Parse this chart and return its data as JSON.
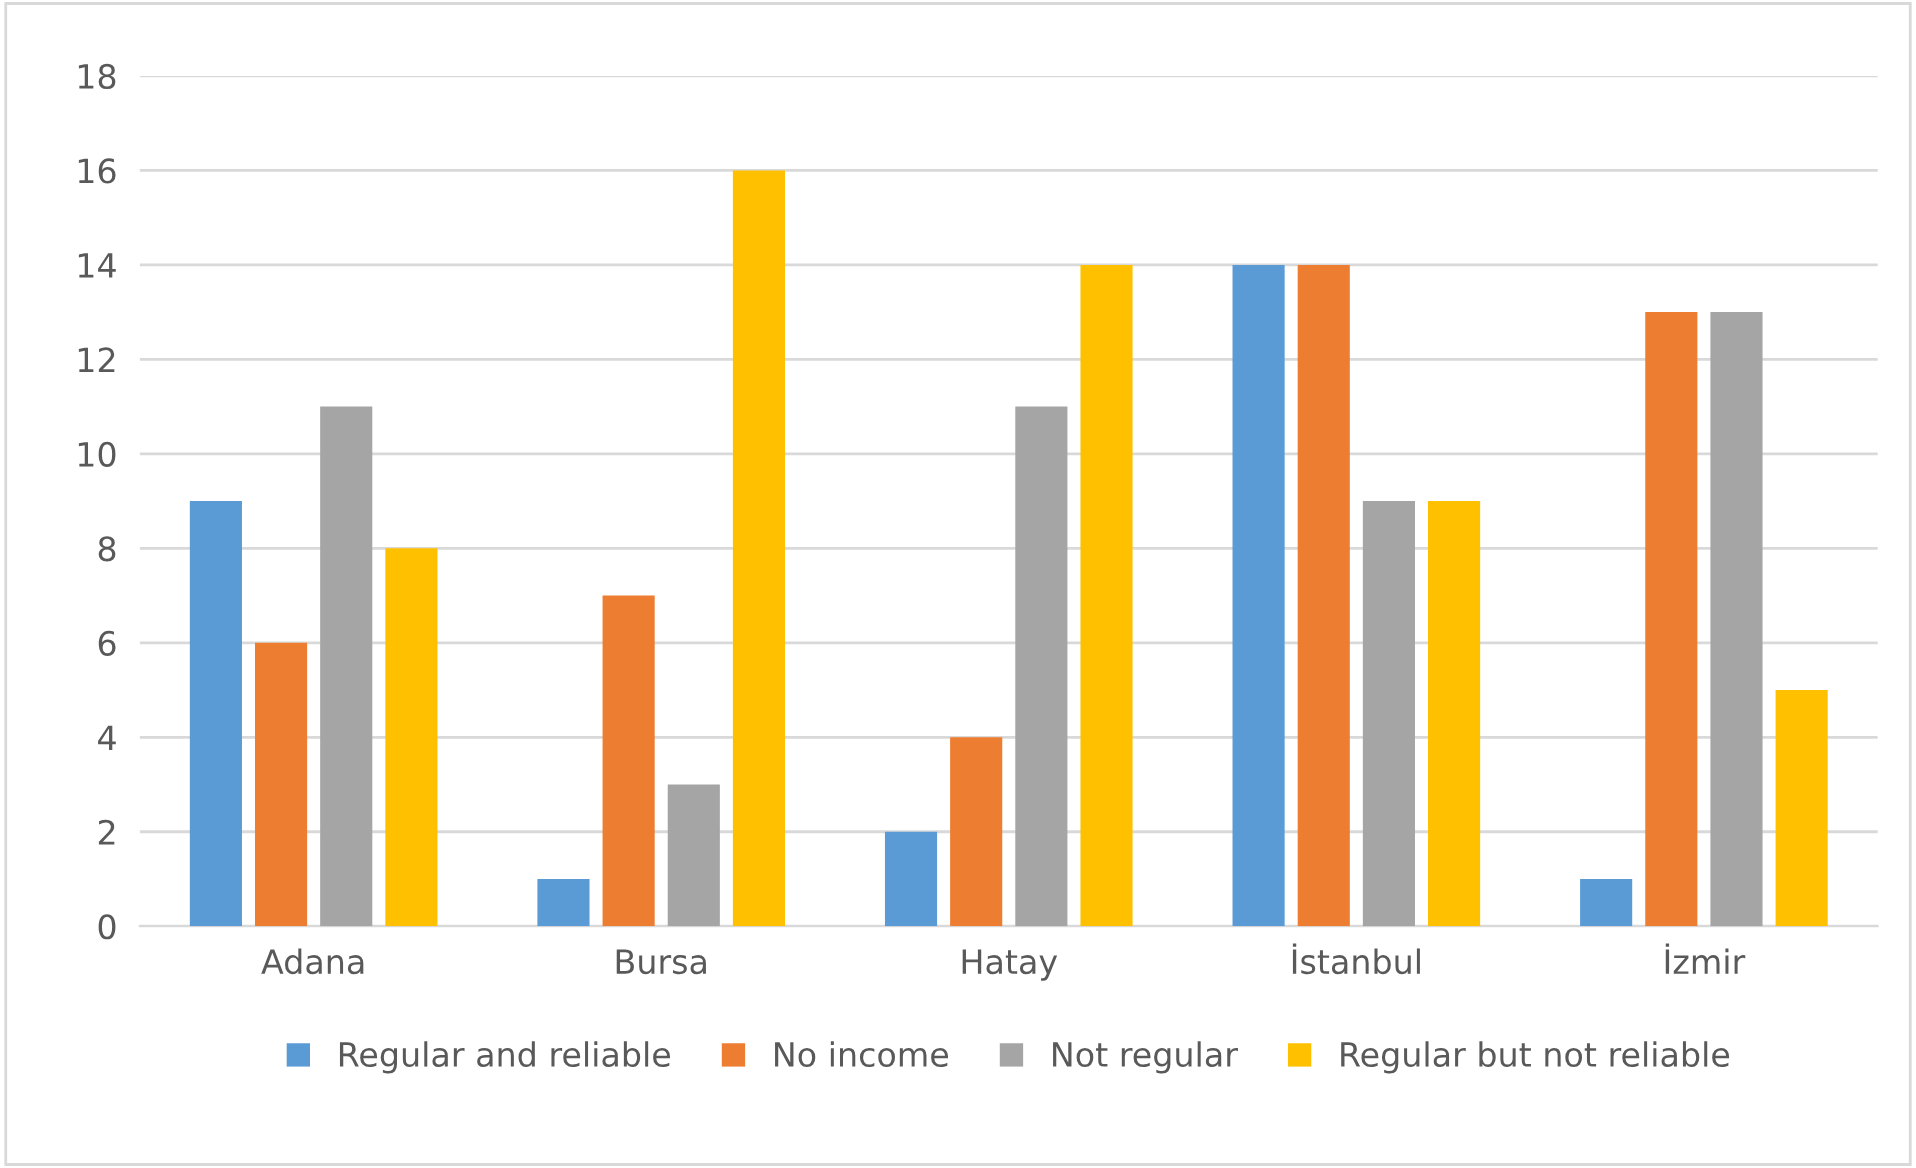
{
  "chart_data": {
    "type": "bar",
    "categories": [
      "Adana",
      "Bursa",
      "Hatay",
      "İstanbul",
      "İzmir"
    ],
    "series": [
      {
        "name": "Regular and reliable",
        "color": "#5b9bd5",
        "values": [
          9,
          1,
          2,
          14,
          1
        ]
      },
      {
        "name": "No income",
        "color": "#ed7d31",
        "values": [
          6,
          7,
          4,
          14,
          13
        ]
      },
      {
        "name": "Not regular",
        "color": "#a5a5a5",
        "values": [
          11,
          3,
          11,
          9,
          13
        ]
      },
      {
        "name": "Regular but not reliable",
        "color": "#ffc000",
        "values": [
          8,
          16,
          14,
          9,
          5
        ]
      }
    ],
    "ylim": [
      0,
      18
    ],
    "yticks": [
      0,
      2,
      4,
      6,
      8,
      10,
      12,
      14,
      16,
      18
    ],
    "grid": "y",
    "legend": "bottom"
  }
}
